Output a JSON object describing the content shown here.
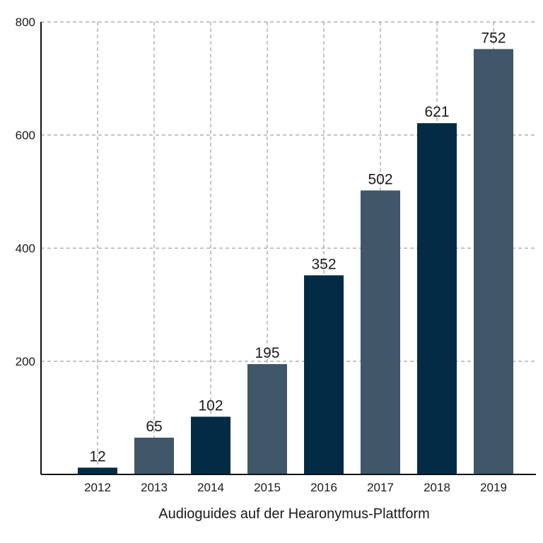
{
  "chart_data": {
    "type": "bar",
    "title": "",
    "xlabel": "Audioguides auf der Hearonymus-Plattform",
    "ylabel": "",
    "categories": [
      "2012",
      "2013",
      "2014",
      "2015",
      "2016",
      "2017",
      "2018",
      "2019"
    ],
    "values": [
      12,
      65,
      102,
      195,
      352,
      502,
      621,
      752
    ],
    "data_labels": [
      "12",
      "65",
      "102",
      "195",
      "352",
      "502",
      "621",
      "752"
    ],
    "ylim": [
      0,
      800
    ],
    "yticks": [
      200,
      400,
      600,
      800
    ],
    "ytick_labels": [
      "200",
      "400",
      "600",
      "800"
    ],
    "grid": true,
    "legend": "none",
    "colors": [
      "#042b45",
      "#405669",
      "#042b45",
      "#405669",
      "#042b45",
      "#405669",
      "#042b45",
      "#405669"
    ]
  }
}
